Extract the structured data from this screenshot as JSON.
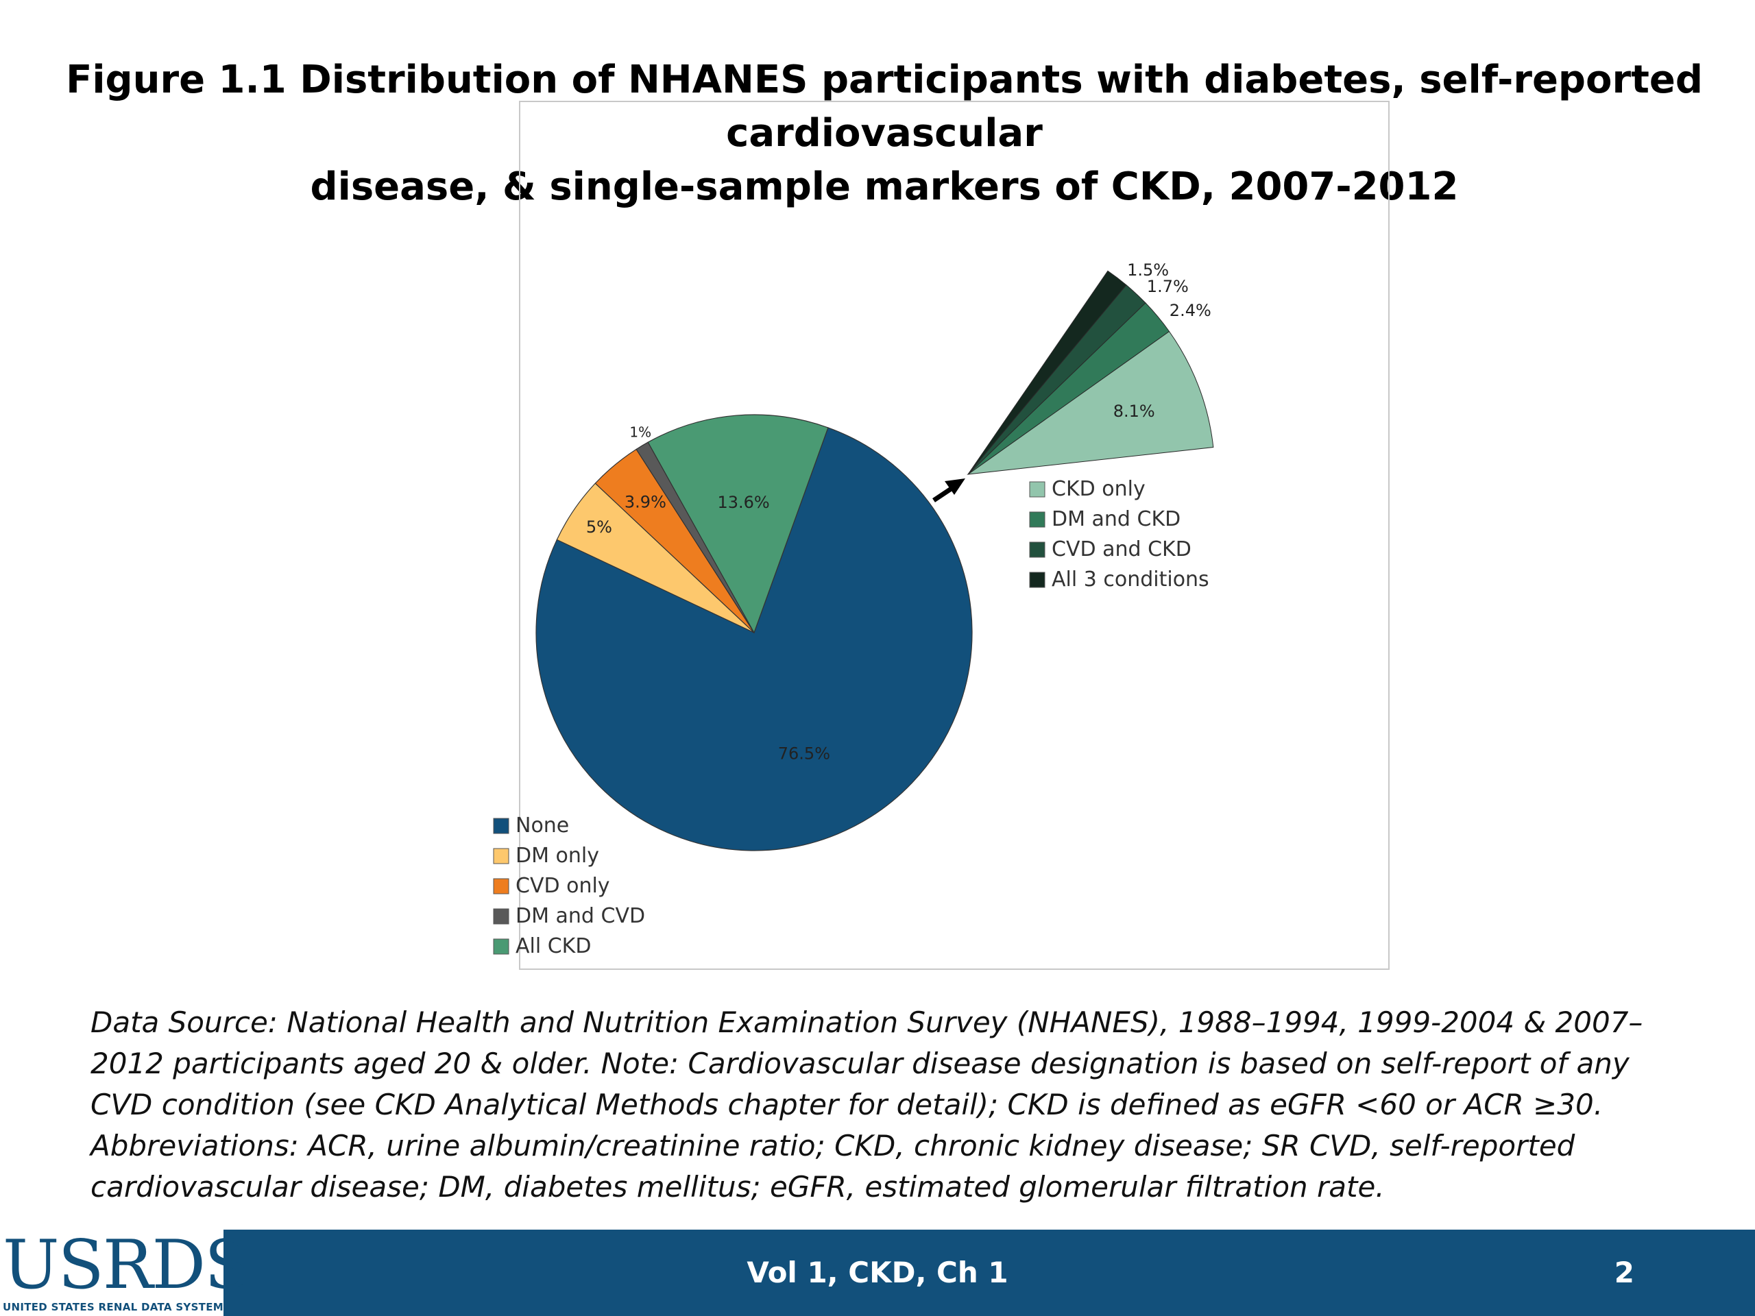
{
  "slide": {
    "title_line1": "Figure 1.1  Distribution of NHANES participants with diabetes, self-reported cardiovascular",
    "title_line2": "disease, & single-sample markers of CKD, 2007-2012",
    "footnote": "Data Source: National Health and Nutrition Examination Survey (NHANES), 1988–1994, 1999-2004 & 2007–2012 participants aged 20 & older. Note: Cardiovascular disease designation is based on self-report of any CVD condition (see CKD Analytical Methods chapter for detail); CKD is defined as eGFR <60 or ACR ≥30. Abbreviations: ACR, urine albumin/creatinine ratio; CKD, chronic kidney disease; SR CVD, self-reported cardiovascular disease; DM, diabetes mellitus; eGFR, estimated glomerular filtration rate."
  },
  "footer": {
    "logo": "USRDS",
    "logo_sub": "UNITED STATES RENAL DATA SYSTEM",
    "center": "Vol 1, CKD, Ch 1",
    "page": "2"
  },
  "chart_data": [
    {
      "type": "pie",
      "title": "",
      "slices": [
        {
          "label": "None",
          "value": 76.5,
          "display": "76.5%",
          "color": "#12507b"
        },
        {
          "label": "DM only",
          "value": 5.0,
          "display": "5%",
          "color": "#fdc86d"
        },
        {
          "label": "CVD only",
          "value": 3.9,
          "display": "3.9%",
          "color": "#ee7d1f"
        },
        {
          "label": "DM and CVD",
          "value": 1.0,
          "display": "1%",
          "color": "#595959"
        },
        {
          "label": "All CKD",
          "value": 13.6,
          "display": "13.6%",
          "color": "#4a9a73"
        }
      ],
      "legend_position": "bottom-left"
    },
    {
      "type": "pie",
      "title": "",
      "detail_of": "All CKD",
      "slices": [
        {
          "label": "CKD only",
          "value": 8.1,
          "display": "8.1%",
          "color": "#92c5ac"
        },
        {
          "label": "DM and CKD",
          "value": 2.4,
          "display": "2.4%",
          "color": "#317a59"
        },
        {
          "label": "CVD and CKD",
          "value": 1.7,
          "display": "1.7%",
          "color": "#22513e"
        },
        {
          "label": "All 3 conditions",
          "value": 1.5,
          "display": "1.5%",
          "color": "#14281f"
        }
      ],
      "legend_position": "right"
    }
  ]
}
